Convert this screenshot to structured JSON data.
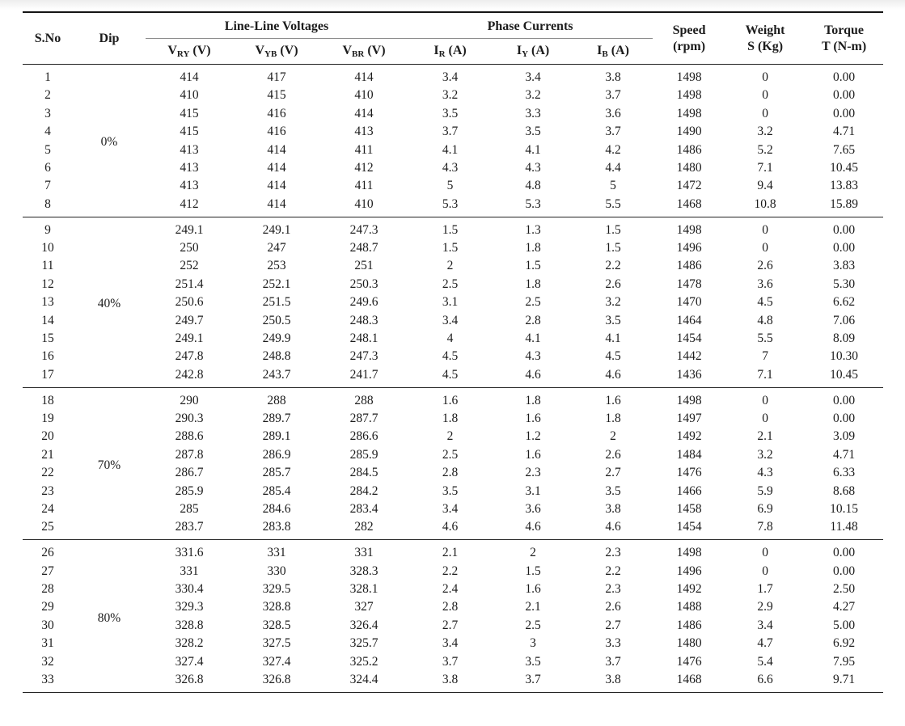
{
  "table": {
    "columns": {
      "sno": "S.No",
      "dip": "Dip",
      "voltage_group": "Line-Line Voltages",
      "current_group": "Phase Currents",
      "sub": [
        {
          "base": "V",
          "sub": "RY",
          "unit": "(V)"
        },
        {
          "base": "V",
          "sub": "YB",
          "unit": "(V)"
        },
        {
          "base": "V",
          "sub": "BR",
          "unit": "(V)"
        },
        {
          "base": "I",
          "sub": "R",
          "unit": "(A)"
        },
        {
          "base": "I",
          "sub": "Y",
          "unit": "(A)"
        },
        {
          "base": "I",
          "sub": "B",
          "unit": "(A)"
        }
      ],
      "speed": {
        "line1": "Speed",
        "line2": "(rpm)"
      },
      "weight": {
        "line1": "Weight",
        "line2": "S (Kg)"
      },
      "torque": {
        "line1": "Torque",
        "line2": "T (N-m)"
      }
    },
    "groups": [
      {
        "dip": "0%",
        "rows": [
          [
            "1",
            "414",
            "417",
            "414",
            "3.4",
            "3.4",
            "3.8",
            "1498",
            "0",
            "0.00"
          ],
          [
            "2",
            "410",
            "415",
            "410",
            "3.2",
            "3.2",
            "3.7",
            "1498",
            "0",
            "0.00"
          ],
          [
            "3",
            "415",
            "416",
            "414",
            "3.5",
            "3.3",
            "3.6",
            "1498",
            "0",
            "0.00"
          ],
          [
            "4",
            "415",
            "416",
            "413",
            "3.7",
            "3.5",
            "3.7",
            "1490",
            "3.2",
            "4.71"
          ],
          [
            "5",
            "413",
            "414",
            "411",
            "4.1",
            "4.1",
            "4.2",
            "1486",
            "5.2",
            "7.65"
          ],
          [
            "6",
            "413",
            "414",
            "412",
            "4.3",
            "4.3",
            "4.4",
            "1480",
            "7.1",
            "10.45"
          ],
          [
            "7",
            "413",
            "414",
            "411",
            "5",
            "4.8",
            "5",
            "1472",
            "9.4",
            "13.83"
          ],
          [
            "8",
            "412",
            "414",
            "410",
            "5.3",
            "5.3",
            "5.5",
            "1468",
            "10.8",
            "15.89"
          ]
        ]
      },
      {
        "dip": "40%",
        "rows": [
          [
            "9",
            "249.1",
            "249.1",
            "247.3",
            "1.5",
            "1.3",
            "1.5",
            "1498",
            "0",
            "0.00"
          ],
          [
            "10",
            "250",
            "247",
            "248.7",
            "1.5",
            "1.8",
            "1.5",
            "1496",
            "0",
            "0.00"
          ],
          [
            "11",
            "252",
            "253",
            "251",
            "2",
            "1.5",
            "2.2",
            "1486",
            "2.6",
            "3.83"
          ],
          [
            "12",
            "251.4",
            "252.1",
            "250.3",
            "2.5",
            "1.8",
            "2.6",
            "1478",
            "3.6",
            "5.30"
          ],
          [
            "13",
            "250.6",
            "251.5",
            "249.6",
            "3.1",
            "2.5",
            "3.2",
            "1470",
            "4.5",
            "6.62"
          ],
          [
            "14",
            "249.7",
            "250.5",
            "248.3",
            "3.4",
            "2.8",
            "3.5",
            "1464",
            "4.8",
            "7.06"
          ],
          [
            "15",
            "249.1",
            "249.9",
            "248.1",
            "4",
            "4.1",
            "4.1",
            "1454",
            "5.5",
            "8.09"
          ],
          [
            "16",
            "247.8",
            "248.8",
            "247.3",
            "4.5",
            "4.3",
            "4.5",
            "1442",
            "7",
            "10.30"
          ],
          [
            "17",
            "242.8",
            "243.7",
            "241.7",
            "4.5",
            "4.6",
            "4.6",
            "1436",
            "7.1",
            "10.45"
          ]
        ]
      },
      {
        "dip": "70%",
        "rows": [
          [
            "18",
            "290",
            "288",
            "288",
            "1.6",
            "1.8",
            "1.6",
            "1498",
            "0",
            "0.00"
          ],
          [
            "19",
            "290.3",
            "289.7",
            "287.7",
            "1.8",
            "1.6",
            "1.8",
            "1497",
            "0",
            "0.00"
          ],
          [
            "20",
            "288.6",
            "289.1",
            "286.6",
            "2",
            "1.2",
            "2",
            "1492",
            "2.1",
            "3.09"
          ],
          [
            "21",
            "287.8",
            "286.9",
            "285.9",
            "2.5",
            "1.6",
            "2.6",
            "1484",
            "3.2",
            "4.71"
          ],
          [
            "22",
            "286.7",
            "285.7",
            "284.5",
            "2.8",
            "2.3",
            "2.7",
            "1476",
            "4.3",
            "6.33"
          ],
          [
            "23",
            "285.9",
            "285.4",
            "284.2",
            "3.5",
            "3.1",
            "3.5",
            "1466",
            "5.9",
            "8.68"
          ],
          [
            "24",
            "285",
            "284.6",
            "283.4",
            "3.4",
            "3.6",
            "3.8",
            "1458",
            "6.9",
            "10.15"
          ],
          [
            "25",
            "283.7",
            "283.8",
            "282",
            "4.6",
            "4.6",
            "4.6",
            "1454",
            "7.8",
            "11.48"
          ]
        ]
      },
      {
        "dip": "80%",
        "rows": [
          [
            "26",
            "331.6",
            "331",
            "331",
            "2.1",
            "2",
            "2.3",
            "1498",
            "0",
            "0.00"
          ],
          [
            "27",
            "331",
            "330",
            "328.3",
            "2.2",
            "1.5",
            "2.2",
            "1496",
            "0",
            "0.00"
          ],
          [
            "28",
            "330.4",
            "329.5",
            "328.1",
            "2.4",
            "1.6",
            "2.3",
            "1492",
            "1.7",
            "2.50"
          ],
          [
            "29",
            "329.3",
            "328.8",
            "327",
            "2.8",
            "2.1",
            "2.6",
            "1488",
            "2.9",
            "4.27"
          ],
          [
            "30",
            "328.8",
            "328.5",
            "326.4",
            "2.7",
            "2.5",
            "2.7",
            "1486",
            "3.4",
            "5.00"
          ],
          [
            "31",
            "328.2",
            "327.5",
            "325.7",
            "3.4",
            "3",
            "3.3",
            "1480",
            "4.7",
            "6.92"
          ],
          [
            "32",
            "327.4",
            "327.4",
            "325.2",
            "3.7",
            "3.5",
            "3.7",
            "1476",
            "5.4",
            "7.95"
          ],
          [
            "33",
            "326.8",
            "326.8",
            "324.4",
            "3.8",
            "3.7",
            "3.8",
            "1468",
            "6.6",
            "9.71"
          ]
        ]
      }
    ]
  }
}
